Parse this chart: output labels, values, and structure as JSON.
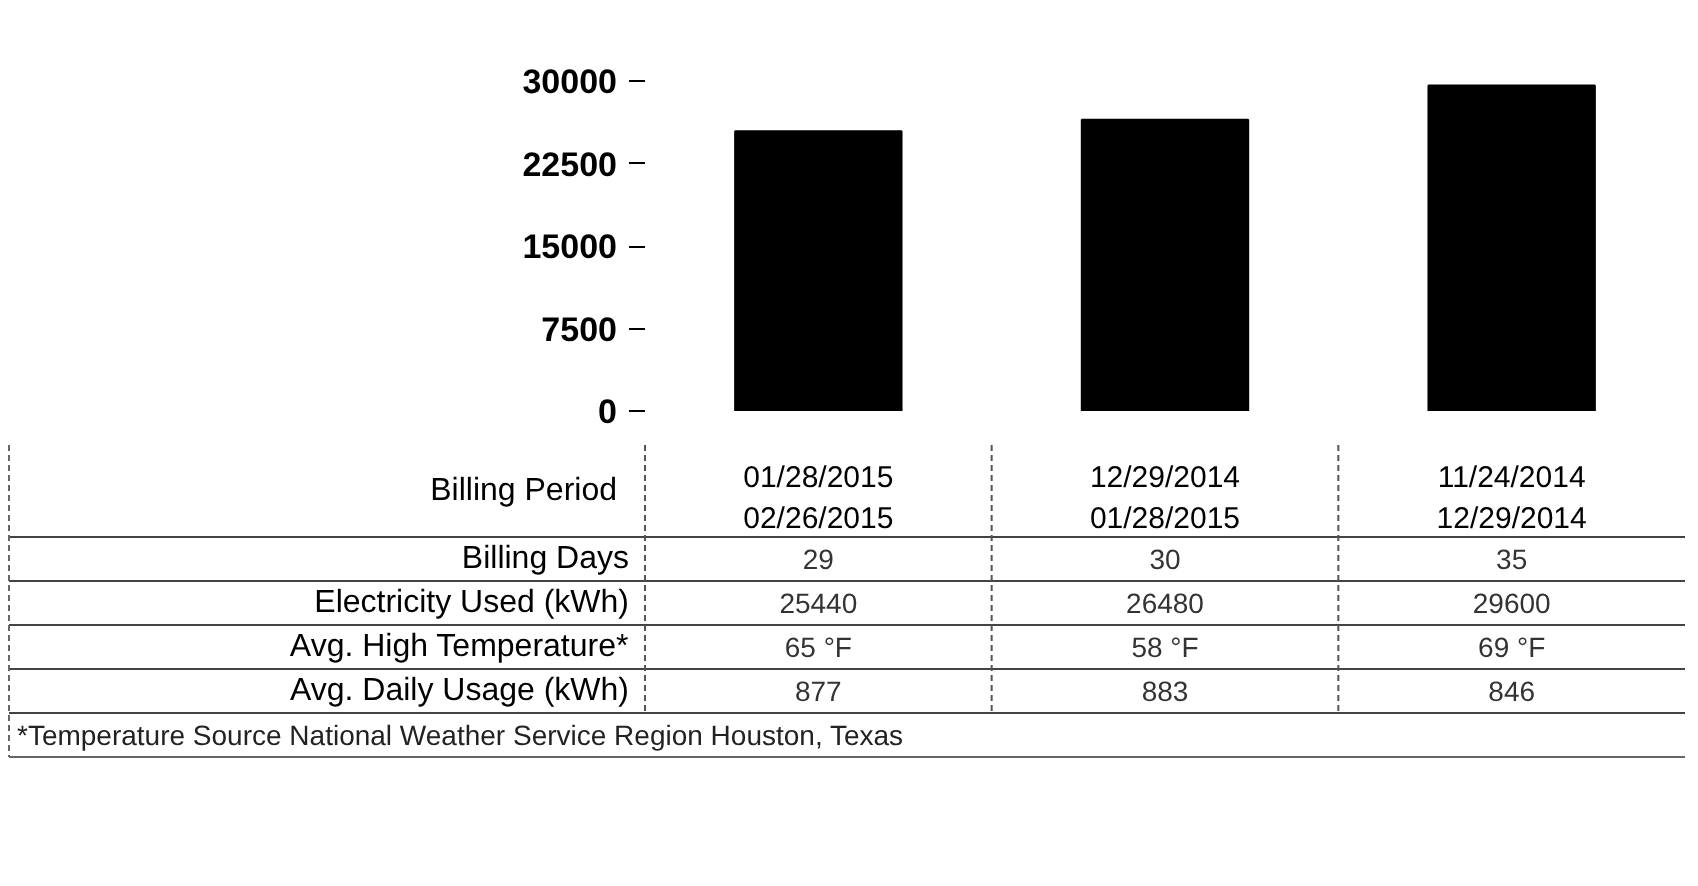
{
  "chart_data": {
    "type": "bar",
    "xlabel": "Billing Period",
    "categories": [
      "01/28/2015\n02/26/2015",
      "12/29/2014\n01/28/2015",
      "11/24/2014\n12/29/2014"
    ],
    "series": [
      {
        "name": "Electricity Used (kWh)",
        "color": "#000000",
        "values": [
          25440,
          26480,
          29600
        ]
      }
    ],
    "ylim": [
      0,
      30000
    ],
    "yticks": [
      0,
      7500,
      15000,
      22500,
      30000
    ],
    "grid": false,
    "legend": false,
    "data_labels": true,
    "annotations": [
      "Billing Days",
      "29",
      "30",
      "35",
      "Avg. High Temperature*",
      "65 °F",
      "58 °F",
      "69 °F",
      "Avg. Daily Usage (kWh)",
      "877",
      "883",
      "846",
      "*Temperature Source National Weather Service  Region Houston, Texas"
    ]
  }
}
